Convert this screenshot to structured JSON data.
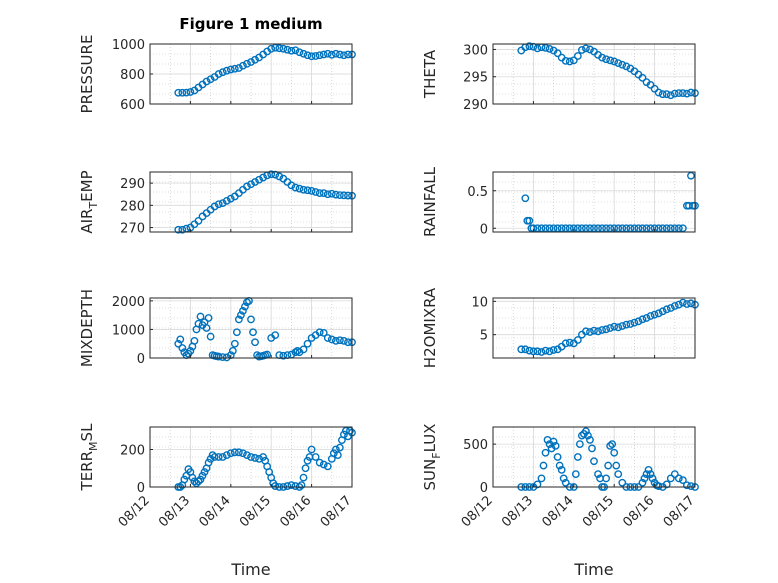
{
  "figure": {
    "title": "Figure 1 medium",
    "xlabel": "Time",
    "xticks": [
      "08/12",
      "08/13",
      "08/14",
      "08/15",
      "08/16",
      "08/17"
    ]
  },
  "colors": {
    "marker": "#0072BD",
    "axis": "#262626",
    "grid": "#bfbfbf"
  },
  "chart_data": [
    {
      "type": "scatter",
      "ylabel": "PRESSURE",
      "ylabel_sub": "",
      "ylabel_after": "",
      "ylim": [
        600,
        1000
      ],
      "yticks": [
        "600",
        "800",
        "1000"
      ],
      "yticks_v": [
        600,
        800,
        1000
      ],
      "x": [
        0.7,
        0.8,
        0.9,
        1.0,
        1.1,
        1.2,
        1.3,
        1.4,
        1.5,
        1.6,
        1.7,
        1.8,
        1.9,
        2.0,
        2.1,
        2.2,
        2.3,
        2.4,
        2.5,
        2.6,
        2.7,
        2.8,
        2.9,
        3.0,
        3.1,
        3.2,
        3.3,
        3.4,
        3.5,
        3.6,
        3.7,
        3.8,
        3.9,
        4.0,
        4.1,
        4.2,
        4.3,
        4.4,
        4.5,
        4.6,
        4.7,
        4.8,
        4.9,
        5.0
      ],
      "y": [
        675,
        675,
        676,
        680,
        690,
        710,
        730,
        750,
        765,
        780,
        800,
        812,
        822,
        830,
        835,
        840,
        855,
        868,
        880,
        895,
        910,
        930,
        950,
        968,
        975,
        972,
        968,
        962,
        955,
        958,
        945,
        935,
        925,
        918,
        920,
        925,
        930,
        935,
        928,
        935,
        930,
        925,
        930,
        930
      ]
    },
    {
      "type": "scatter",
      "ylabel": "THETA",
      "ylabel_sub": "",
      "ylabel_after": "",
      "ylim": [
        290,
        301
      ],
      "yticks": [
        "290",
        "295",
        "300"
      ],
      "yticks_v": [
        290,
        295,
        300
      ],
      "x": [
        0.7,
        0.8,
        0.9,
        1.0,
        1.1,
        1.2,
        1.3,
        1.4,
        1.5,
        1.6,
        1.7,
        1.8,
        1.9,
        2.0,
        2.1,
        2.2,
        2.3,
        2.4,
        2.5,
        2.6,
        2.7,
        2.8,
        2.9,
        3.0,
        3.1,
        3.2,
        3.3,
        3.4,
        3.5,
        3.6,
        3.7,
        3.8,
        3.9,
        4.0,
        4.1,
        4.2,
        4.3,
        4.4,
        4.5,
        4.6,
        4.7,
        4.8,
        4.9,
        5.0
      ],
      "y": [
        299.8,
        300.4,
        300.6,
        300.5,
        300.2,
        300.4,
        300.3,
        300.1,
        299.8,
        299.3,
        298.5,
        297.9,
        297.8,
        298.0,
        298.8,
        299.9,
        300.2,
        300.0,
        299.6,
        299.0,
        298.5,
        298.2,
        298.0,
        297.8,
        297.5,
        297.2,
        296.9,
        296.5,
        296.0,
        295.4,
        294.8,
        294.0,
        293.5,
        292.8,
        292.1,
        291.8,
        291.8,
        291.6,
        291.9,
        292.0,
        292.0,
        291.9,
        292.1,
        292.0
      ]
    },
    {
      "type": "scatter",
      "ylabel": "AIR",
      "ylabel_sub": "T",
      "ylabel_after": "EMP",
      "ylim": [
        268,
        295
      ],
      "yticks": [
        "270",
        "280",
        "290"
      ],
      "yticks_v": [
        270,
        280,
        290
      ],
      "x": [
        0.7,
        0.8,
        0.9,
        1.0,
        1.1,
        1.2,
        1.3,
        1.4,
        1.5,
        1.6,
        1.7,
        1.8,
        1.9,
        2.0,
        2.1,
        2.2,
        2.3,
        2.4,
        2.5,
        2.6,
        2.7,
        2.8,
        2.9,
        3.0,
        3.1,
        3.2,
        3.3,
        3.4,
        3.5,
        3.6,
        3.7,
        3.8,
        3.9,
        4.0,
        4.1,
        4.2,
        4.3,
        4.4,
        4.5,
        4.6,
        4.7,
        4.8,
        4.9,
        5.0
      ],
      "y": [
        269,
        269,
        269.5,
        270,
        271.5,
        273,
        275,
        276.5,
        278,
        279.5,
        280.5,
        281,
        282,
        283,
        284,
        285.5,
        287,
        288.5,
        289.5,
        290.5,
        291.5,
        292.5,
        293.5,
        294,
        293.8,
        293,
        292,
        290.5,
        289,
        288,
        287.5,
        287,
        286.8,
        286.5,
        286,
        285.5,
        285.5,
        285,
        285.2,
        284.8,
        284.6,
        284.5,
        284.4,
        284.3
      ]
    },
    {
      "type": "scatter",
      "ylabel": "RAINFALL",
      "ylabel_sub": "",
      "ylabel_after": "",
      "ylim": [
        -0.05,
        0.75
      ],
      "yticks": [
        "0",
        "0.5"
      ],
      "yticks_v": [
        0,
        0.5
      ],
      "x": [
        0.8,
        0.85,
        0.9,
        0.95,
        1.0,
        1.1,
        1.2,
        1.3,
        1.4,
        1.5,
        1.6,
        1.7,
        1.8,
        1.9,
        2.0,
        2.1,
        2.2,
        2.3,
        2.4,
        2.5,
        2.6,
        2.7,
        2.8,
        2.9,
        3.0,
        3.1,
        3.2,
        3.3,
        3.4,
        3.5,
        3.6,
        3.7,
        3.8,
        3.9,
        4.0,
        4.1,
        4.2,
        4.3,
        4.4,
        4.5,
        4.6,
        4.7,
        4.8,
        4.85,
        4.9,
        4.95,
        5.0
      ],
      "y": [
        0.4,
        0.1,
        0.1,
        0,
        0,
        0,
        0,
        0,
        0,
        0,
        0,
        0,
        0,
        0,
        0,
        0,
        0,
        0,
        0,
        0,
        0,
        0,
        0,
        0,
        0,
        0,
        0,
        0,
        0,
        0,
        0,
        0,
        0,
        0,
        0,
        0,
        0,
        0,
        0,
        0,
        0,
        0,
        0.3,
        0.3,
        0.7,
        0.3,
        0.3
      ]
    },
    {
      "type": "scatter",
      "ylabel": "MIXDEPTH",
      "ylabel_sub": "",
      "ylabel_after": "",
      "ylim": [
        0,
        2100
      ],
      "yticks": [
        "0",
        "1000",
        "2000"
      ],
      "yticks_v": [
        0,
        1000,
        2000
      ],
      "x": [
        0.7,
        0.75,
        0.8,
        0.85,
        0.9,
        0.95,
        1.0,
        1.05,
        1.1,
        1.15,
        1.2,
        1.25,
        1.3,
        1.35,
        1.4,
        1.45,
        1.5,
        1.55,
        1.6,
        1.65,
        1.7,
        1.8,
        1.9,
        2.0,
        2.05,
        2.1,
        2.15,
        2.2,
        2.25,
        2.3,
        2.35,
        2.4,
        2.45,
        2.5,
        2.55,
        2.6,
        2.65,
        2.7,
        2.75,
        2.8,
        2.85,
        2.9,
        3.0,
        3.1,
        3.2,
        3.3,
        3.4,
        3.5,
        3.6,
        3.65,
        3.7,
        3.8,
        3.9,
        4.0,
        4.1,
        4.2,
        4.3,
        4.4,
        4.5,
        4.6,
        4.7,
        4.8,
        4.9,
        5.0
      ],
      "y": [
        500,
        650,
        350,
        200,
        100,
        150,
        250,
        400,
        600,
        1000,
        1200,
        1450,
        1150,
        1250,
        1050,
        1400,
        750,
        100,
        80,
        60,
        50,
        30,
        20,
        100,
        250,
        500,
        900,
        1350,
        1500,
        1650,
        1800,
        1950,
        2000,
        1350,
        900,
        550,
        100,
        50,
        60,
        80,
        100,
        120,
        700,
        800,
        100,
        80,
        100,
        120,
        200,
        250,
        200,
        300,
        500,
        700,
        800,
        900,
        880,
        700,
        650,
        600,
        620,
        600,
        550,
        550
      ]
    },
    {
      "type": "scatter",
      "ylabel": "H2OMIXRA",
      "ylabel_sub": "",
      "ylabel_after": "",
      "ylim": [
        1.5,
        10.5
      ],
      "yticks": [
        "5",
        "10"
      ],
      "yticks_v": [
        5,
        10
      ],
      "x": [
        0.7,
        0.8,
        0.9,
        1.0,
        1.1,
        1.2,
        1.3,
        1.4,
        1.5,
        1.6,
        1.7,
        1.8,
        1.9,
        2.0,
        2.1,
        2.2,
        2.3,
        2.4,
        2.5,
        2.6,
        2.7,
        2.8,
        2.9,
        3.0,
        3.1,
        3.2,
        3.3,
        3.4,
        3.5,
        3.6,
        3.7,
        3.8,
        3.9,
        4.0,
        4.1,
        4.2,
        4.3,
        4.4,
        4.5,
        4.6,
        4.7,
        4.8,
        4.9,
        5.0
      ],
      "y": [
        2.8,
        2.8,
        2.6,
        2.5,
        2.5,
        2.4,
        2.6,
        2.5,
        2.7,
        2.8,
        3.2,
        3.7,
        3.8,
        3.7,
        4.2,
        5.0,
        5.5,
        5.4,
        5.6,
        5.5,
        5.7,
        5.8,
        6.0,
        6.2,
        6.1,
        6.3,
        6.5,
        6.6,
        6.8,
        7.0,
        7.3,
        7.5,
        7.8,
        8.0,
        8.2,
        8.5,
        8.8,
        9.0,
        9.3,
        9.5,
        9.8,
        9.6,
        9.7,
        9.5
      ]
    },
    {
      "type": "scatter",
      "ylabel": "TERR",
      "ylabel_sub": "M",
      "ylabel_after": "SL",
      "ylim": [
        0,
        320
      ],
      "yticks": [
        "0",
        "200"
      ],
      "yticks_v": [
        0,
        200
      ],
      "x": [
        0.7,
        0.75,
        0.8,
        0.85,
        0.9,
        0.95,
        1.0,
        1.05,
        1.1,
        1.15,
        1.2,
        1.25,
        1.3,
        1.35,
        1.4,
        1.45,
        1.5,
        1.55,
        1.6,
        1.7,
        1.8,
        1.9,
        2.0,
        2.1,
        2.2,
        2.3,
        2.4,
        2.5,
        2.6,
        2.7,
        2.8,
        2.85,
        2.9,
        2.95,
        3.0,
        3.05,
        3.1,
        3.2,
        3.3,
        3.4,
        3.5,
        3.6,
        3.7,
        3.75,
        3.8,
        3.85,
        3.9,
        3.95,
        4.0,
        4.1,
        4.2,
        4.3,
        4.4,
        4.5,
        4.55,
        4.6,
        4.65,
        4.7,
        4.75,
        4.8,
        4.85,
        4.9,
        4.95,
        5.0
      ],
      "y": [
        0,
        0,
        10,
        40,
        60,
        95,
        80,
        50,
        30,
        20,
        30,
        40,
        60,
        80,
        100,
        130,
        150,
        170,
        160,
        160,
        160,
        170,
        180,
        185,
        185,
        180,
        170,
        160,
        155,
        150,
        160,
        140,
        110,
        80,
        50,
        20,
        5,
        0,
        0,
        5,
        10,
        5,
        0,
        10,
        50,
        100,
        140,
        160,
        200,
        160,
        130,
        120,
        110,
        150,
        180,
        200,
        170,
        210,
        250,
        280,
        300,
        270,
        300,
        290
      ]
    },
    {
      "type": "scatter",
      "ylabel": "SUN",
      "ylabel_sub": "F",
      "ylabel_after": "LUX",
      "ylim": [
        0,
        700
      ],
      "yticks": [
        "0",
        "500"
      ],
      "yticks_v": [
        0,
        500
      ],
      "x": [
        0.7,
        0.8,
        0.9,
        1.0,
        1.1,
        1.2,
        1.25,
        1.3,
        1.35,
        1.4,
        1.45,
        1.5,
        1.55,
        1.6,
        1.65,
        1.7,
        1.75,
        1.8,
        1.9,
        2.0,
        2.05,
        2.1,
        2.15,
        2.2,
        2.25,
        2.3,
        2.35,
        2.4,
        2.45,
        2.5,
        2.6,
        2.65,
        2.7,
        2.75,
        2.8,
        2.85,
        2.9,
        2.95,
        3.0,
        3.05,
        3.1,
        3.2,
        3.3,
        3.4,
        3.5,
        3.6,
        3.7,
        3.75,
        3.8,
        3.85,
        3.9,
        3.95,
        4.0,
        4.05,
        4.1,
        4.2,
        4.3,
        4.4,
        4.5,
        4.6,
        4.7,
        4.8,
        4.9,
        5.0
      ],
      "y": [
        0,
        0,
        0,
        0,
        30,
        100,
        250,
        400,
        550,
        500,
        450,
        530,
        480,
        350,
        250,
        200,
        100,
        50,
        0,
        0,
        150,
        350,
        500,
        600,
        620,
        650,
        600,
        550,
        450,
        300,
        150,
        100,
        0,
        0,
        100,
        250,
        480,
        500,
        400,
        250,
        150,
        50,
        0,
        0,
        0,
        0,
        50,
        100,
        150,
        200,
        150,
        100,
        50,
        20,
        10,
        0,
        30,
        100,
        150,
        100,
        80,
        20,
        10,
        0
      ]
    }
  ]
}
